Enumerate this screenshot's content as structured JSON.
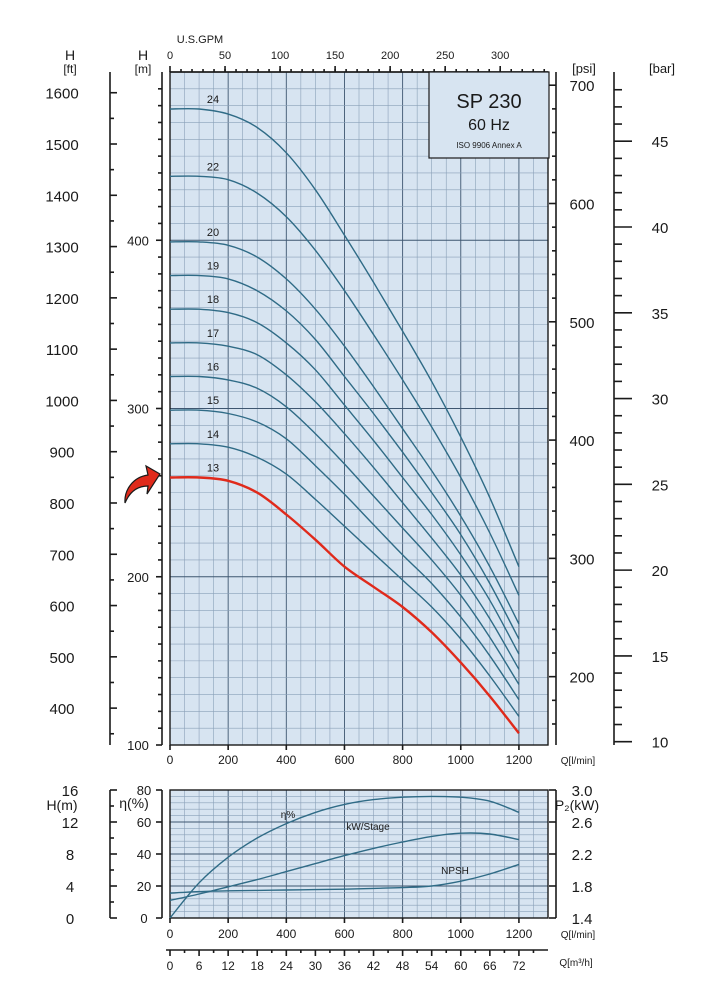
{
  "title": {
    "model": "SP 230",
    "frequency": "60 Hz",
    "standard": "ISO 9906 Annex A"
  },
  "chart_data": [
    {
      "type": "line",
      "name": "head-curves",
      "x": [
        0,
        100,
        200,
        300,
        400,
        500,
        600,
        700,
        800,
        900,
        1000,
        1100,
        1200
      ],
      "xlabel": "Q[l/min]",
      "xlim": [
        0,
        1300
      ],
      "xticks": [
        "0",
        "200",
        "400",
        "600",
        "800",
        "1000",
        "1200"
      ],
      "ylabel": "H [m]",
      "ylim": [
        100,
        500
      ],
      "yticks": [
        "100",
        "200",
        "300",
        "400"
      ],
      "y_ft_label": "H [ft]",
      "y_ft_ticks": [
        "400",
        "500",
        "600",
        "700",
        "800",
        "900",
        "1000",
        "1100",
        "1200",
        "1300",
        "1400",
        "1500",
        "1600"
      ],
      "psi_label": "[psi]",
      "psi_ticks": [
        "200",
        "300",
        "400",
        "500",
        "600",
        "700"
      ],
      "bar_label": "[bar]",
      "bar_ticks": [
        "10",
        "15",
        "20",
        "25",
        "30",
        "35",
        "40",
        "45"
      ],
      "top_axis_label": "U.S.GPM",
      "top_axis_ticks": [
        "0",
        "50",
        "100",
        "150",
        "200",
        "250",
        "300"
      ],
      "highlighted": "13",
      "series": [
        {
          "name": "13",
          "values": [
            259,
            259,
            257,
            250,
            237,
            222,
            206,
            194,
            182,
            167,
            149,
            129,
            107
          ]
        },
        {
          "name": "14",
          "values": [
            279,
            279,
            277,
            271,
            261,
            246,
            230,
            214,
            198,
            182,
            163,
            141,
            117
          ]
        },
        {
          "name": "15",
          "values": [
            299,
            299,
            297,
            292,
            282,
            266,
            249,
            231,
            213,
            196,
            176,
            153,
            127
          ]
        },
        {
          "name": "16",
          "values": [
            319,
            319,
            317,
            312,
            301,
            285,
            267,
            248,
            229,
            210,
            189,
            164,
            136
          ]
        },
        {
          "name": "17",
          "values": [
            339,
            339,
            337,
            332,
            320,
            304,
            285,
            265,
            244,
            223,
            201,
            175,
            145
          ]
        },
        {
          "name": "18",
          "values": [
            359,
            359,
            357,
            351,
            339,
            323,
            302,
            281,
            259,
            237,
            213,
            186,
            154
          ]
        },
        {
          "name": "19",
          "values": [
            379,
            379,
            377,
            370,
            358,
            341,
            319,
            297,
            274,
            250,
            225,
            196,
            163
          ]
        },
        {
          "name": "20",
          "values": [
            399,
            399,
            397,
            390,
            377,
            359,
            337,
            313,
            288,
            263,
            236,
            206,
            172
          ]
        },
        {
          "name": "22",
          "values": [
            438,
            438,
            436,
            428,
            414,
            394,
            370,
            344,
            317,
            289,
            259,
            226,
            189
          ]
        },
        {
          "name": "24",
          "values": [
            478,
            478,
            475,
            467,
            452,
            430,
            403,
            375,
            346,
            316,
            283,
            247,
            206
          ]
        }
      ]
    },
    {
      "type": "line",
      "name": "efficiency-power-npsh",
      "x": [
        0,
        100,
        200,
        300,
        400,
        500,
        600,
        700,
        800,
        900,
        1000,
        1100,
        1200
      ],
      "xlabel": "Q[l/min]",
      "xlim": [
        0,
        1300
      ],
      "xticks": [
        "0",
        "200",
        "400",
        "600",
        "800",
        "1000",
        "1200"
      ],
      "x_m3h_label": "Q[m³/h]",
      "x_m3h_ticks": [
        "0",
        "6",
        "12",
        "18",
        "24",
        "30",
        "36",
        "42",
        "48",
        "54",
        "60",
        "66",
        "72"
      ],
      "eta_label": "η(%)",
      "eta_ticks": [
        "0",
        "20",
        "40",
        "60",
        "80"
      ],
      "h_label": "H(m)",
      "h_ticks": [
        "0",
        "4",
        "8",
        "12",
        "16"
      ],
      "p2_label": "P₂(kW)",
      "p2_ticks": [
        "1.4",
        "1.8",
        "2.2",
        "2.6",
        "3.0"
      ],
      "series": [
        {
          "name": "η%",
          "label": "η%",
          "values": [
            0,
            22,
            38,
            50,
            59,
            66,
            71,
            74,
            75.5,
            76,
            75.5,
            73,
            66
          ]
        },
        {
          "name": "kW/Stage",
          "label": "kW/Stage",
          "values": [
            1.62,
            1.7,
            1.79,
            1.88,
            1.98,
            2.08,
            2.18,
            2.27,
            2.35,
            2.42,
            2.46,
            2.45,
            2.38
          ]
        },
        {
          "name": "NPSH",
          "label": "NPSH",
          "values": [
            3.1,
            3.3,
            3.4,
            3.45,
            3.5,
            3.55,
            3.6,
            3.7,
            3.8,
            4.0,
            4.6,
            5.5,
            6.7
          ]
        }
      ]
    }
  ]
}
